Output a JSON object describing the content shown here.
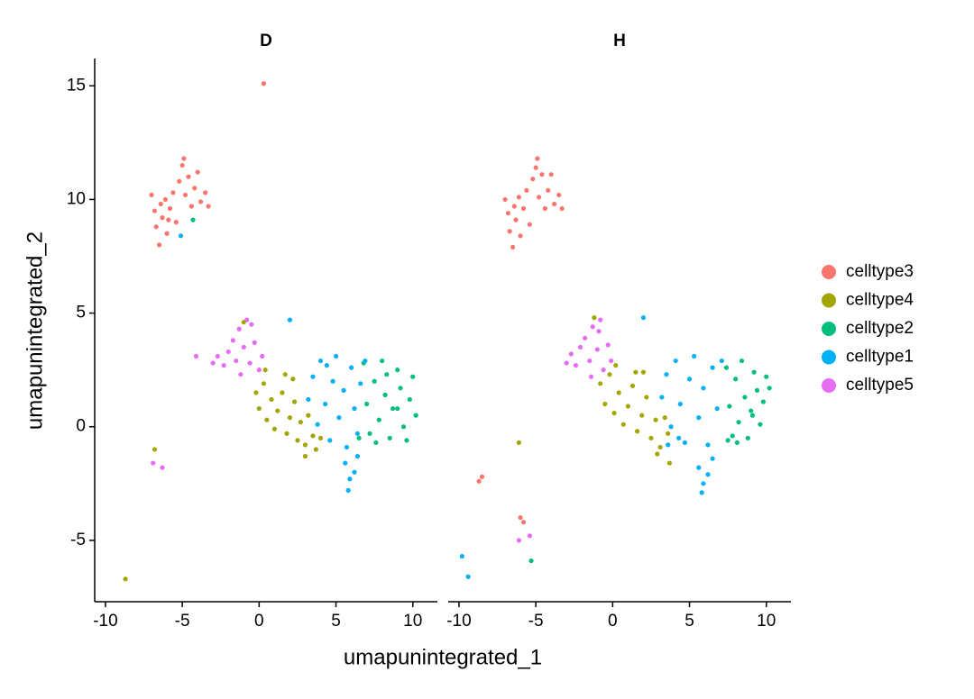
{
  "chart_data": {
    "type": "scatter",
    "xlabel": "umapunintegrated_1",
    "ylabel": "umapunintegrated_2",
    "xlim": [
      -10.7,
      11.6
    ],
    "ylim": [
      -7.7,
      16.2
    ],
    "xticks": [
      -10,
      -5,
      0,
      5,
      10
    ],
    "yticks": [
      -5,
      0,
      5,
      10,
      15
    ],
    "series": [
      {
        "name": "celltype3",
        "color": "#F8766D"
      },
      {
        "name": "celltype4",
        "color": "#A3A500"
      },
      {
        "name": "celltype2",
        "color": "#00BF7D"
      },
      {
        "name": "celltype1",
        "color": "#00B0F6"
      },
      {
        "name": "celltype5",
        "color": "#E76BF3"
      }
    ],
    "panels": [
      {
        "title": "D",
        "series": [
          {
            "x": [
              -7,
              -6.8,
              -6.7,
              -6.5,
              -6.3,
              -6.1,
              -6.0,
              -5.8,
              -5.6,
              -5.4,
              -5.2,
              -5.0,
              -4.8,
              -4.6,
              -4.4,
              -4.2,
              -4.0,
              -3.8,
              -3.5,
              -3.3,
              -4.9,
              -6.4,
              -5.9,
              0.3
            ],
            "y": [
              10.2,
              9.5,
              8.8,
              8.0,
              9.2,
              10.0,
              8.5,
              9.6,
              10.3,
              9.0,
              10.8,
              11.5,
              10.2,
              11.0,
              9.7,
              10.5,
              11.2,
              9.9,
              10.3,
              9.7,
              11.8,
              9.8,
              9.1,
              15.1
            ]
          },
          {
            "x": [
              -0.2,
              0,
              0.3,
              0.5,
              0.8,
              1,
              1.2,
              1.5,
              1.8,
              2,
              2.3,
              2.5,
              2.7,
              3,
              3.2,
              3.5,
              3.7,
              2.2,
              -1,
              -6.8,
              -8.7,
              0.4,
              1.7,
              3,
              4
            ],
            "y": [
              1.5,
              0.8,
              1.9,
              0.3,
              1.2,
              -0.1,
              0.7,
              1.5,
              -0.3,
              0.4,
              1.1,
              -0.6,
              0.2,
              -0.8,
              0.5,
              -0.4,
              -1.0,
              2.1,
              4.6,
              -1,
              -6.7,
              2.5,
              2.3,
              -1.3,
              -0.5
            ]
          },
          {
            "x": [
              6.8,
              7,
              7.2,
              7.5,
              7.8,
              8,
              8.2,
              8.5,
              8.7,
              9,
              9.2,
              9.4,
              9.6,
              9.8,
              10,
              10.2,
              6.5,
              7.6,
              -4.3,
              9,
              8.3
            ],
            "y": [
              2.8,
              1,
              -0.3,
              2,
              0.3,
              2.9,
              1.4,
              -0.5,
              0.8,
              2.5,
              1.7,
              0,
              -0.6,
              1.2,
              2.2,
              0.5,
              -0.5,
              -0.7,
              9.1,
              0.8,
              2.3
            ]
          },
          {
            "x": [
              3.2,
              3.5,
              3.8,
              4,
              4.3,
              4.6,
              4.8,
              5,
              5.2,
              5.5,
              5.7,
              6,
              6.2,
              6.4,
              6.6,
              6.9,
              5.6,
              5.9,
              6.2,
              5.8,
              6.4,
              2,
              -5.1,
              4.4
            ],
            "y": [
              1.2,
              2.2,
              0.1,
              2.9,
              1,
              -0.6,
              2,
              3.1,
              0.4,
              1.6,
              -0.9,
              2.6,
              0.8,
              -0.3,
              1.9,
              2.9,
              -1.6,
              -2.3,
              -2,
              -2.8,
              -1.3,
              4.7,
              8.4,
              2.7
            ]
          },
          {
            "x": [
              -3,
              -2.7,
              -2.3,
              -2,
              -1.7,
              -1.5,
              -1.3,
              -1,
              -0.8,
              -0.6,
              -0.3,
              0,
              0.2,
              -0.5,
              -4.1,
              -6.9,
              -6.3,
              -1.2
            ],
            "y": [
              2.8,
              3.1,
              2.7,
              3.3,
              3.8,
              2.9,
              4.3,
              3.5,
              4.7,
              2.8,
              3.7,
              2.5,
              3.1,
              4.5,
              3.1,
              -1.6,
              -1.8,
              2.3
            ]
          }
        ]
      },
      {
        "title": "H",
        "series": [
          {
            "x": [
              -7,
              -6.8,
              -6.7,
              -6.5,
              -6.3,
              -6.1,
              -6.0,
              -5.8,
              -5.6,
              -5.4,
              -5.2,
              -5.0,
              -4.8,
              -4.6,
              -4.4,
              -4.2,
              -4.0,
              -3.8,
              -3.5,
              -3.3,
              -4.9,
              -6.4,
              -8.5,
              -8.7,
              -6,
              -5.8
            ],
            "y": [
              10,
              9.4,
              8.6,
              7.9,
              9.1,
              10.1,
              8.4,
              9.6,
              10.4,
              8.9,
              10.9,
              11.4,
              10.1,
              11.1,
              9.6,
              10.4,
              11.1,
              9.8,
              10.2,
              9.6,
              11.8,
              9.7,
              -2.2,
              -2.4,
              -4,
              -4.2
            ]
          },
          {
            "x": [
              -0.8,
              -0.5,
              -0.2,
              0.1,
              0.4,
              0.7,
              1,
              1.3,
              1.6,
              1.9,
              2.2,
              2.5,
              2.8,
              3.1,
              3.4,
              3.7,
              2,
              -1.2,
              -6.1,
              0.2,
              1.5,
              2.9,
              3.6
            ],
            "y": [
              1.9,
              1.0,
              2.3,
              0.6,
              1.5,
              0.1,
              0.9,
              1.8,
              -0.2,
              0.5,
              1.3,
              -0.5,
              0.3,
              -0.9,
              0.4,
              -1.6,
              2.4,
              4.8,
              -0.7,
              2.7,
              2.4,
              -1.2,
              -0.3
            ]
          },
          {
            "x": [
              7.4,
              7.6,
              7.8,
              8,
              8.2,
              8.4,
              8.6,
              8.8,
              9,
              9.2,
              9.4,
              9.6,
              9.8,
              10,
              10.2,
              7.5,
              8.1,
              9.1,
              -5.3
            ],
            "y": [
              2.6,
              0.9,
              -0.4,
              2.1,
              0.2,
              2.9,
              1.3,
              -0.5,
              0.7,
              2.4,
              1.6,
              0.1,
              1.1,
              2.2,
              1.7,
              -0.6,
              -0.7,
              0.5,
              -5.9
            ]
          },
          {
            "x": [
              3.2,
              3.5,
              3.8,
              4.1,
              4.4,
              4.7,
              5,
              5.3,
              5.6,
              5.9,
              6.2,
              6.5,
              6.8,
              7.1,
              5.6,
              5.9,
              6.2,
              5.8,
              6.5,
              2,
              -9.8,
              -9.4,
              4.3,
              3.6
            ],
            "y": [
              1.3,
              2.3,
              0,
              2.9,
              1,
              -0.7,
              2.1,
              3.1,
              0.4,
              1.7,
              -0.8,
              2.6,
              0.8,
              2.9,
              -1.8,
              -2.5,
              -2.1,
              -2.9,
              -1.4,
              4.8,
              -5.7,
              -6.6,
              -0.5,
              -0.8
            ]
          },
          {
            "x": [
              -3,
              -2.7,
              -2.4,
              -2.1,
              -1.8,
              -1.5,
              -1.3,
              -1,
              -0.8,
              -0.6,
              -0.3,
              -0.1,
              -1.4,
              -0.9,
              -6.1,
              -5.4
            ],
            "y": [
              2.8,
              3.2,
              2.7,
              3.5,
              3.9,
              2.9,
              4.4,
              3.4,
              4.7,
              2.5,
              3.6,
              2.9,
              2.2,
              4.2,
              -5,
              -4.8
            ]
          }
        ]
      }
    ]
  }
}
